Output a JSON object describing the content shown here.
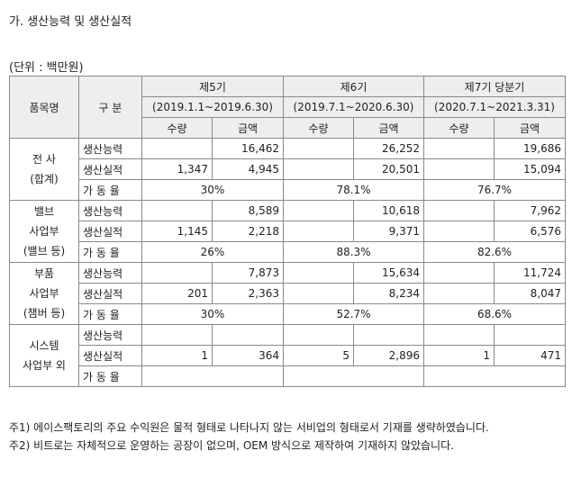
{
  "title": "가. 생산능력 및 생산실적",
  "unit": "(단위 : 백만원)",
  "header": {
    "item": "품목명",
    "division": "구 분",
    "periods": [
      {
        "label": "제5기",
        "range": "(2019.1.1~2019.6.30)"
      },
      {
        "label": "제6기",
        "range": "(2019.7.1~2020.6.30)"
      },
      {
        "label": "제7기 당분기",
        "range": "(2020.7.1~2021.3.31)"
      }
    ],
    "qty": "수량",
    "amount": "금액"
  },
  "labels": {
    "capacity": "생산능력",
    "output": "생산실적",
    "rate": "가 동 율"
  },
  "segments": [
    {
      "name_lines": [
        "전 사",
        "(합계)"
      ],
      "capacity": [
        [
          "",
          "16,462"
        ],
        [
          "",
          "26,252"
        ],
        [
          "",
          "19,686"
        ]
      ],
      "output": [
        [
          "1,347",
          "4,945"
        ],
        [
          "",
          "20,501"
        ],
        [
          "",
          "15,094"
        ]
      ],
      "rate": [
        "30%",
        "78.1%",
        "76.7%"
      ]
    },
    {
      "name_lines": [
        "밸브",
        "사업부",
        "(밸브 등)"
      ],
      "capacity": [
        [
          "",
          "8,589"
        ],
        [
          "",
          "10,618"
        ],
        [
          "",
          "7,962"
        ]
      ],
      "output": [
        [
          "1,145",
          "2,218"
        ],
        [
          "",
          "9,371"
        ],
        [
          "",
          "6,576"
        ]
      ],
      "rate": [
        "26%",
        "88.3%",
        "82.6%"
      ]
    },
    {
      "name_lines": [
        "부품",
        "사업부",
        "(챔버 등)"
      ],
      "capacity": [
        [
          "",
          "7,873"
        ],
        [
          "",
          "15,634"
        ],
        [
          "",
          "11,724"
        ]
      ],
      "output": [
        [
          "201",
          "2,363"
        ],
        [
          "",
          "8,234"
        ],
        [
          "",
          "8,047"
        ]
      ],
      "rate": [
        "30%",
        "52.7%",
        "68.6%"
      ]
    },
    {
      "name_lines": [
        "시스템",
        "사업부 외"
      ],
      "capacity": [
        [
          "",
          ""
        ],
        [
          "",
          ""
        ],
        [
          "",
          ""
        ]
      ],
      "output": [
        [
          "1",
          "364"
        ],
        [
          "5",
          "2,896"
        ],
        [
          "1",
          "471"
        ]
      ],
      "rate": [
        "",
        "",
        ""
      ]
    }
  ],
  "notes": [
    "주1) 에이스팩토리의 주요 수익원은 물적 형태로 나타나지 않는 서비업의 형태로서 기재를 생략하였습니다.",
    "주2) 비트로는 자체적으로 운영하는 공장이 없으며, OEM 방식으로 제작하여 기재하지 않았습니다."
  ]
}
